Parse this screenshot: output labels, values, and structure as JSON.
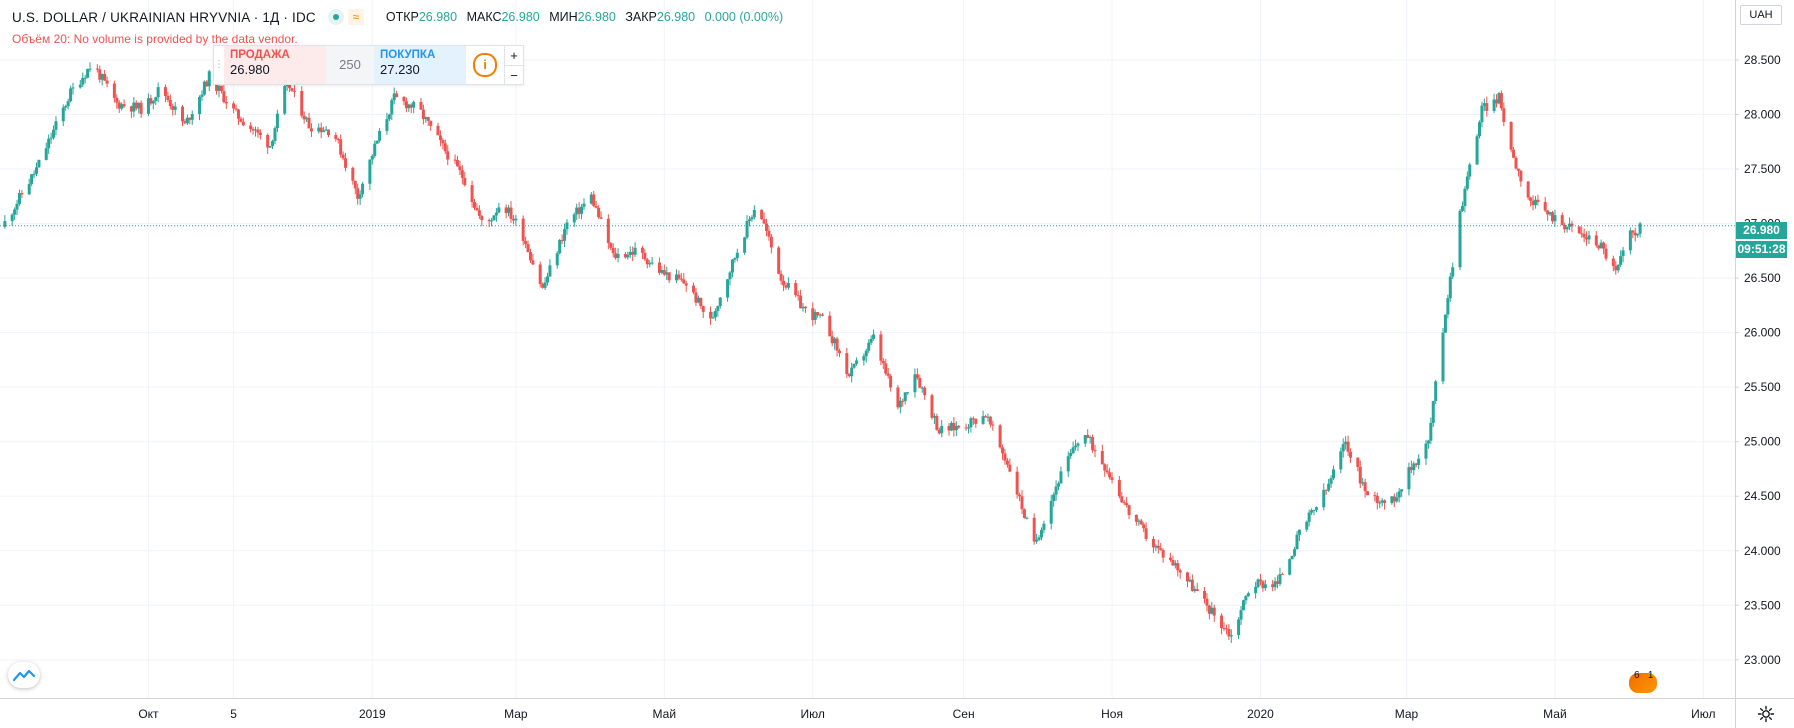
{
  "header": {
    "symbol": "U.S. DOLLAR / UKRAINIAN HRYVNIA · 1Д · IDC",
    "ohlc": [
      {
        "k": "ОТКР",
        "v": "26.980"
      },
      {
        "k": "МАКС",
        "v": "26.980"
      },
      {
        "k": "МИН",
        "v": "26.980"
      },
      {
        "k": "ЗАКР",
        "v": "26.980"
      },
      {
        "k": "",
        "v": "0.000 (0.00%)"
      }
    ],
    "volume_note": "Объём 20: No volume is provided by the data vendor."
  },
  "trade_panel": {
    "sell_label": "ПРОДАЖА",
    "sell_value": "26.980",
    "quantity": "250",
    "buy_label": "ПОКУПКА",
    "buy_value": "27.230",
    "info_icon": "i",
    "plus": "+",
    "minus": "−"
  },
  "right_scale": {
    "currency": "UAH",
    "last_price": "26.980",
    "countdown": "09:51:28"
  },
  "badges": {
    "a": "6",
    "b": "1"
  },
  "colors": {
    "up": "#26a69a",
    "down": "#ef5350",
    "grid": "#f0f3fa",
    "axis_text": "#131722"
  },
  "chart_data": {
    "type": "candlestick",
    "y_ticks": [
      23.0,
      23.5,
      24.0,
      24.5,
      25.0,
      25.5,
      26.0,
      26.5,
      27.0,
      27.5,
      28.0,
      28.5
    ],
    "y_tick_labels": [
      "23.000",
      "23.500",
      "24.000",
      "24.500",
      "25.000",
      "25.500",
      "26.000",
      "26.500",
      "27.000",
      "27.500",
      "28.000",
      "28.500"
    ],
    "ylim": [
      22.65,
      29.05
    ],
    "x_ticks": [
      {
        "label": "Окт",
        "date": "2018-10-01"
      },
      {
        "label": "5",
        "date": "2018-11-05"
      },
      {
        "label": "2019",
        "date": "2019-01-01"
      },
      {
        "label": "Мар",
        "date": "2019-03-01"
      },
      {
        "label": "Май",
        "date": "2019-05-01"
      },
      {
        "label": "Июл",
        "date": "2019-07-01"
      },
      {
        "label": "Сен",
        "date": "2019-09-01"
      },
      {
        "label": "Ноя",
        "date": "2019-11-01"
      },
      {
        "label": "2020",
        "date": "2020-01-01"
      },
      {
        "label": "Мар",
        "date": "2020-03-01"
      },
      {
        "label": "Май",
        "date": "2020-05-01"
      },
      {
        "label": "Июл",
        "date": "2020-07-01"
      }
    ],
    "xlim": [
      "2018-08-01",
      "2020-07-14"
    ],
    "last_price": 26.98,
    "close_path": [
      {
        "date": "2018-08-02",
        "close": 26.97
      },
      {
        "date": "2018-08-16",
        "close": 27.5
      },
      {
        "date": "2018-08-30",
        "close": 28.2
      },
      {
        "date": "2018-09-08",
        "close": 28.47
      },
      {
        "date": "2018-09-18",
        "close": 28.1
      },
      {
        "date": "2018-09-29",
        "close": 28.05
      },
      {
        "date": "2018-10-06",
        "close": 28.25
      },
      {
        "date": "2018-10-16",
        "close": 27.9
      },
      {
        "date": "2018-10-26",
        "close": 28.35
      },
      {
        "date": "2018-11-06",
        "close": 28.0
      },
      {
        "date": "2018-11-20",
        "close": 27.72
      },
      {
        "date": "2018-11-27",
        "close": 28.3
      },
      {
        "date": "2018-12-06",
        "close": 27.9
      },
      {
        "date": "2018-12-16",
        "close": 27.85
      },
      {
        "date": "2018-12-26",
        "close": 27.25
      },
      {
        "date": "2019-01-02",
        "close": 27.7
      },
      {
        "date": "2019-01-10",
        "close": 28.15
      },
      {
        "date": "2019-01-20",
        "close": 28.05
      },
      {
        "date": "2019-01-30",
        "close": 27.7
      },
      {
        "date": "2019-02-08",
        "close": 27.4
      },
      {
        "date": "2019-02-16",
        "close": 26.95
      },
      {
        "date": "2019-02-23",
        "close": 27.2
      },
      {
        "date": "2019-03-03",
        "close": 26.95
      },
      {
        "date": "2019-03-12",
        "close": 26.4
      },
      {
        "date": "2019-03-22",
        "close": 27.0
      },
      {
        "date": "2019-04-01",
        "close": 27.25
      },
      {
        "date": "2019-04-10",
        "close": 26.7
      },
      {
        "date": "2019-04-20",
        "close": 26.75
      },
      {
        "date": "2019-04-30",
        "close": 26.55
      },
      {
        "date": "2019-05-10",
        "close": 26.45
      },
      {
        "date": "2019-05-20",
        "close": 26.1
      },
      {
        "date": "2019-05-30",
        "close": 26.7
      },
      {
        "date": "2019-06-08",
        "close": 27.2
      },
      {
        "date": "2019-06-18",
        "close": 26.5
      },
      {
        "date": "2019-06-28",
        "close": 26.2
      },
      {
        "date": "2019-07-06",
        "close": 26.1
      },
      {
        "date": "2019-07-16",
        "close": 25.6
      },
      {
        "date": "2019-07-26",
        "close": 25.95
      },
      {
        "date": "2019-08-05",
        "close": 25.3
      },
      {
        "date": "2019-08-12",
        "close": 25.65
      },
      {
        "date": "2019-08-22",
        "close": 25.1
      },
      {
        "date": "2019-09-01",
        "close": 25.15
      },
      {
        "date": "2019-09-10",
        "close": 25.25
      },
      {
        "date": "2019-09-20",
        "close": 24.75
      },
      {
        "date": "2019-09-30",
        "close": 24.05
      },
      {
        "date": "2019-10-10",
        "close": 24.65
      },
      {
        "date": "2019-10-20",
        "close": 25.1
      },
      {
        "date": "2019-10-30",
        "close": 24.75
      },
      {
        "date": "2019-11-08",
        "close": 24.35
      },
      {
        "date": "2019-11-18",
        "close": 24.05
      },
      {
        "date": "2019-11-28",
        "close": 23.85
      },
      {
        "date": "2019-12-08",
        "close": 23.55
      },
      {
        "date": "2019-12-20",
        "close": 23.22
      },
      {
        "date": "2019-12-28",
        "close": 23.7
      },
      {
        "date": "2020-01-08",
        "close": 23.7
      },
      {
        "date": "2020-01-18",
        "close": 24.2
      },
      {
        "date": "2020-01-28",
        "close": 24.55
      },
      {
        "date": "2020-02-05",
        "close": 25.0
      },
      {
        "date": "2020-02-14",
        "close": 24.5
      },
      {
        "date": "2020-02-24",
        "close": 24.45
      },
      {
        "date": "2020-03-04",
        "close": 24.8
      },
      {
        "date": "2020-03-10",
        "close": 25.0
      },
      {
        "date": "2020-03-17",
        "close": 26.2
      },
      {
        "date": "2020-03-23",
        "close": 27.1
      },
      {
        "date": "2020-04-01",
        "close": 28.05
      },
      {
        "date": "2020-04-08",
        "close": 28.15
      },
      {
        "date": "2020-04-14",
        "close": 27.6
      },
      {
        "date": "2020-04-21",
        "close": 27.2
      },
      {
        "date": "2020-05-01",
        "close": 27.05
      },
      {
        "date": "2020-05-12",
        "close": 26.9
      },
      {
        "date": "2020-05-20",
        "close": 26.8
      },
      {
        "date": "2020-05-26",
        "close": 26.55
      },
      {
        "date": "2020-06-01",
        "close": 26.9
      },
      {
        "date": "2020-06-06",
        "close": 26.98
      }
    ]
  }
}
